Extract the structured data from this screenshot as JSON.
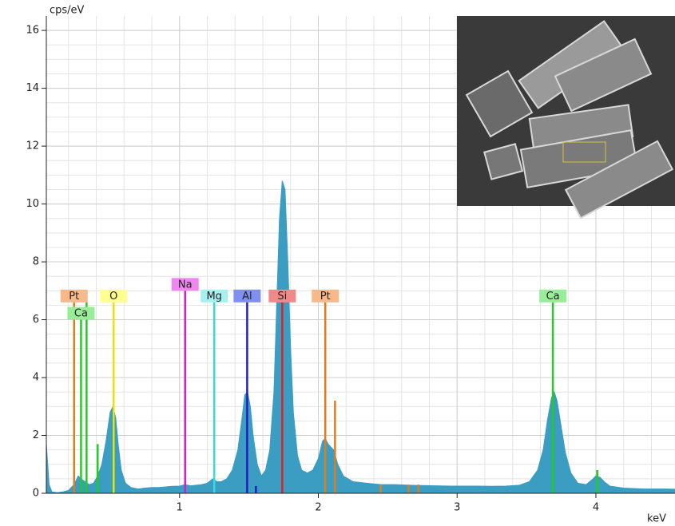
{
  "chart_data": {
    "type": "spectrum",
    "y_label": "cps/eV",
    "x_label": "keV",
    "xlim": [
      0.04,
      4.57
    ],
    "ylim": [
      0,
      16.5
    ],
    "xticks": [
      1,
      2,
      3,
      4
    ],
    "yticks": [
      0,
      2,
      4,
      6,
      8,
      10,
      12,
      14,
      16
    ],
    "grid": true,
    "color": "#3a9dc1",
    "x": [
      0.04,
      0.06,
      0.08,
      0.12,
      0.16,
      0.2,
      0.24,
      0.27,
      0.29,
      0.32,
      0.35,
      0.38,
      0.41,
      0.44,
      0.47,
      0.5,
      0.52,
      0.54,
      0.56,
      0.58,
      0.61,
      0.65,
      0.7,
      0.75,
      0.8,
      0.85,
      0.9,
      0.95,
      1.0,
      1.04,
      1.08,
      1.12,
      1.16,
      1.2,
      1.24,
      1.27,
      1.3,
      1.34,
      1.38,
      1.42,
      1.45,
      1.47,
      1.49,
      1.51,
      1.53,
      1.56,
      1.59,
      1.62,
      1.65,
      1.68,
      1.7,
      1.72,
      1.74,
      1.76,
      1.78,
      1.8,
      1.82,
      1.85,
      1.88,
      1.92,
      1.96,
      2.0,
      2.03,
      2.05,
      2.07,
      2.09,
      2.11,
      2.14,
      2.18,
      2.25,
      2.35,
      2.45,
      2.55,
      2.65,
      2.75,
      2.85,
      2.95,
      3.05,
      3.15,
      3.25,
      3.35,
      3.45,
      3.52,
      3.58,
      3.62,
      3.65,
      3.68,
      3.7,
      3.72,
      3.75,
      3.78,
      3.82,
      3.87,
      3.93,
      3.98,
      4.0,
      4.03,
      4.06,
      4.1,
      4.2,
      4.35,
      4.5,
      4.57
    ],
    "values": [
      1.7,
      0.3,
      0.05,
      0.02,
      0.05,
      0.1,
      0.3,
      0.6,
      0.5,
      0.4,
      0.3,
      0.35,
      0.6,
      1.0,
      1.8,
      2.8,
      3.0,
      2.6,
      1.6,
      0.8,
      0.35,
      0.2,
      0.15,
      0.18,
      0.2,
      0.2,
      0.22,
      0.24,
      0.25,
      0.3,
      0.26,
      0.28,
      0.3,
      0.35,
      0.5,
      0.4,
      0.4,
      0.5,
      0.8,
      1.5,
      2.6,
      3.4,
      3.5,
      3.0,
      2.0,
      1.0,
      0.6,
      0.8,
      1.5,
      3.5,
      6.5,
      9.5,
      10.8,
      10.5,
      8.0,
      5.0,
      2.8,
      1.3,
      0.8,
      0.7,
      0.8,
      1.2,
      1.8,
      1.9,
      1.7,
      1.6,
      1.5,
      1.0,
      0.6,
      0.4,
      0.35,
      0.3,
      0.3,
      0.28,
      0.27,
      0.26,
      0.25,
      0.25,
      0.25,
      0.24,
      0.25,
      0.28,
      0.4,
      0.8,
      1.5,
      2.5,
      3.3,
      3.5,
      3.2,
      2.3,
      1.4,
      0.7,
      0.35,
      0.3,
      0.5,
      0.6,
      0.55,
      0.4,
      0.25,
      0.18,
      0.15,
      0.15,
      0.14
    ],
    "element_markers": [
      {
        "label": "Pt",
        "energy": 0.24,
        "height": 6.6,
        "color": "#e07b20",
        "box_color": "#f7b98a"
      },
      {
        "label": "Ca",
        "energy": 0.29,
        "height": 6.0,
        "color": "#22cc22",
        "box_color": "#98ee98"
      },
      {
        "label": "O",
        "energy": 0.525,
        "height": 6.6,
        "color": "#e6e600",
        "box_color": "#ffff90"
      },
      {
        "label": "Na",
        "energy": 1.04,
        "height": 7.0,
        "color": "#cc22cc",
        "box_color": "#ee88ee"
      },
      {
        "label": "Mg",
        "energy": 1.25,
        "height": 6.6,
        "color": "#33dddd",
        "box_color": "#a6f0f0"
      },
      {
        "label": "Al",
        "energy": 1.487,
        "height": 6.6,
        "color": "#2020c0",
        "box_color": "#8090f0"
      },
      {
        "label": "Si",
        "energy": 1.74,
        "height": 6.6,
        "color": "#e02020",
        "box_color": "#f08a8a"
      },
      {
        "label": "Pt",
        "energy": 2.05,
        "height": 6.6,
        "color": "#e07b20",
        "box_color": "#f7b98a"
      },
      {
        "label": "Ca",
        "energy": 3.69,
        "height": 6.6,
        "color": "#22cc22",
        "box_color": "#98ee98"
      }
    ],
    "minor_markers": [
      {
        "energy": 0.33,
        "height": 6.6,
        "color": "#22cc22"
      },
      {
        "energy": 0.41,
        "height": 1.7,
        "color": "#22cc22"
      },
      {
        "energy": 2.12,
        "height": 3.2,
        "color": "#e07b20"
      },
      {
        "energy": 4.01,
        "height": 0.8,
        "color": "#22cc22"
      },
      {
        "energy": 1.55,
        "height": 0.25,
        "color": "#2020c0"
      },
      {
        "energy": 2.45,
        "height": 0.3,
        "color": "#e07b20"
      },
      {
        "energy": 2.65,
        "height": 0.3,
        "color": "#e07b20"
      },
      {
        "energy": 2.72,
        "height": 0.3,
        "color": "#e07b20"
      }
    ]
  }
}
